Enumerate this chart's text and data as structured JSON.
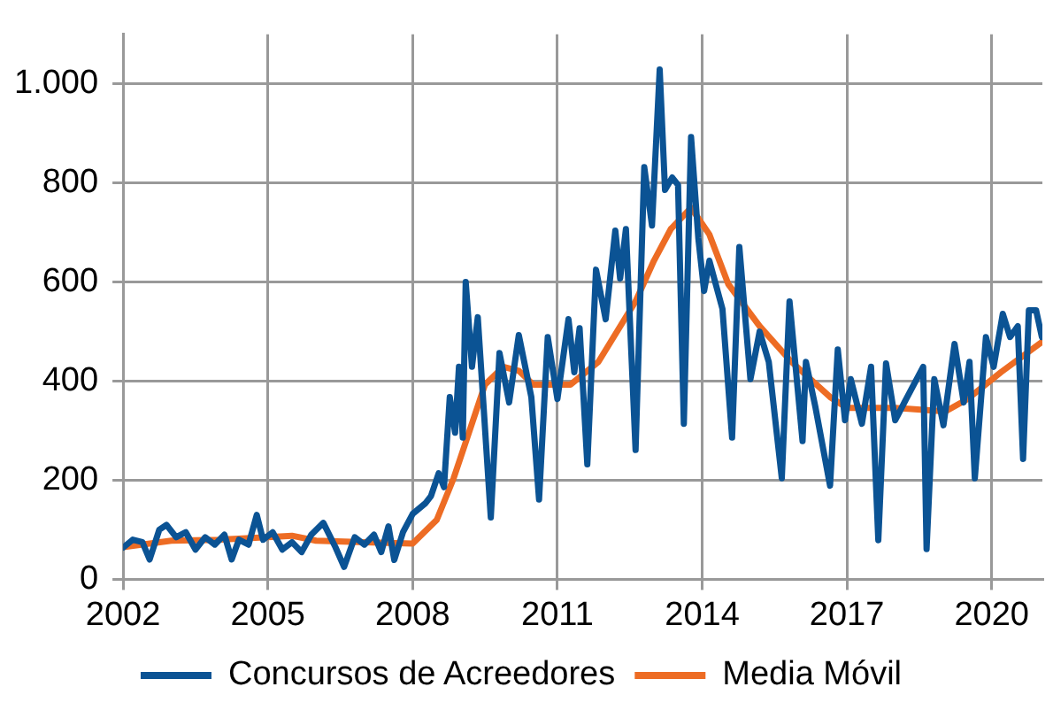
{
  "chart_data": {
    "type": "line",
    "xlim": [
      2002,
      2021.05
    ],
    "xticks": [
      2002,
      2005,
      2008,
      2011,
      2014,
      2017,
      2020
    ],
    "ylim": [
      0,
      1100
    ],
    "yticks": [
      0,
      200,
      400,
      600,
      800,
      {
        "value": 1000,
        "label": "1.000"
      }
    ],
    "grid": true,
    "legend": "bottom",
    "marker": "none",
    "line_style": "solid",
    "series": [
      {
        "name": "Concursos de Acreedores",
        "color": "#0b5394",
        "x": [
          2002.0,
          2002.2,
          2002.4,
          2002.55,
          2002.75,
          2002.9,
          2003.1,
          2003.3,
          2003.5,
          2003.7,
          2003.9,
          2004.1,
          2004.25,
          2004.4,
          2004.6,
          2004.77,
          2004.9,
          2005.1,
          2005.3,
          2005.5,
          2005.7,
          2005.9,
          2006.15,
          2006.4,
          2006.58,
          2006.8,
          2007.0,
          2007.2,
          2007.35,
          2007.5,
          2007.62,
          2007.8,
          2008.0,
          2008.27,
          2008.38,
          2008.54,
          2008.65,
          2008.77,
          2008.88,
          2008.96,
          2009.04,
          2009.1,
          2009.23,
          2009.35,
          2009.62,
          2009.8,
          2010.0,
          2010.2,
          2010.46,
          2010.62,
          2010.8,
          2011.0,
          2011.23,
          2011.35,
          2011.46,
          2011.62,
          2011.8,
          2012.0,
          2012.2,
          2012.3,
          2012.42,
          2012.62,
          2012.8,
          2012.96,
          2013.12,
          2013.23,
          2013.38,
          2013.5,
          2013.62,
          2013.77,
          2013.92,
          2014.04,
          2014.15,
          2014.42,
          2014.62,
          2014.77,
          2015.0,
          2015.19,
          2015.38,
          2015.65,
          2015.81,
          2016.08,
          2016.15,
          2016.35,
          2016.65,
          2016.81,
          2016.96,
          2017.08,
          2017.31,
          2017.5,
          2017.65,
          2017.81,
          2018.0,
          2018.19,
          2018.58,
          2018.65,
          2018.81,
          2019.0,
          2019.23,
          2019.42,
          2019.54,
          2019.65,
          2019.88,
          2020.04,
          2020.23,
          2020.38,
          2020.54,
          2020.65,
          2020.77,
          2020.92,
          2021.04
        ],
        "values": [
          64,
          80,
          75,
          40,
          100,
          110,
          85,
          95,
          60,
          85,
          70,
          90,
          40,
          80,
          70,
          130,
          80,
          95,
          60,
          75,
          55,
          90,
          114,
          65,
          25,
          85,
          70,
          90,
          55,
          107,
          39,
          95,
          132,
          154,
          168,
          214,
          186,
          368,
          296,
          429,
          286,
          600,
          429,
          529,
          125,
          457,
          357,
          493,
          368,
          161,
          489,
          364,
          525,
          418,
          507,
          232,
          625,
          525,
          704,
          607,
          707,
          261,
          832,
          714,
          1029,
          786,
          811,
          796,
          314,
          893,
          689,
          582,
          643,
          546,
          286,
          671,
          404,
          500,
          439,
          204,
          561,
          279,
          439,
          346,
          189,
          464,
          321,
          404,
          314,
          429,
          79,
          436,
          321,
          357,
          429,
          61,
          404,
          311,
          475,
          357,
          439,
          204,
          489,
          429,
          536,
          489,
          511,
          243,
          543,
          543,
          489
        ]
      },
      {
        "name": "Media Móvil",
        "color": "#ed6c24",
        "x": [
          2002.0,
          2003.0,
          2004.0,
          2005.0,
          2005.5,
          2006.0,
          2007.0,
          2008.0,
          2008.5,
          2008.85,
          2009.5,
          2009.88,
          2010.2,
          2010.5,
          2011.27,
          2011.85,
          2012.62,
          2013.0,
          2013.35,
          2013.77,
          2014.15,
          2014.54,
          2015.19,
          2015.85,
          2016.65,
          2017.0,
          2018.0,
          2019.04,
          2019.5,
          2020.19,
          2021.04
        ],
        "values": [
          65,
          78,
          80,
          85,
          88,
          78,
          75,
          72,
          120,
          204,
          393,
          429,
          421,
          393,
          393,
          439,
          561,
          643,
          707,
          750,
          696,
          596,
          511,
          439,
          368,
          346,
          346,
          339,
          364,
          418,
          479
        ]
      }
    ]
  }
}
